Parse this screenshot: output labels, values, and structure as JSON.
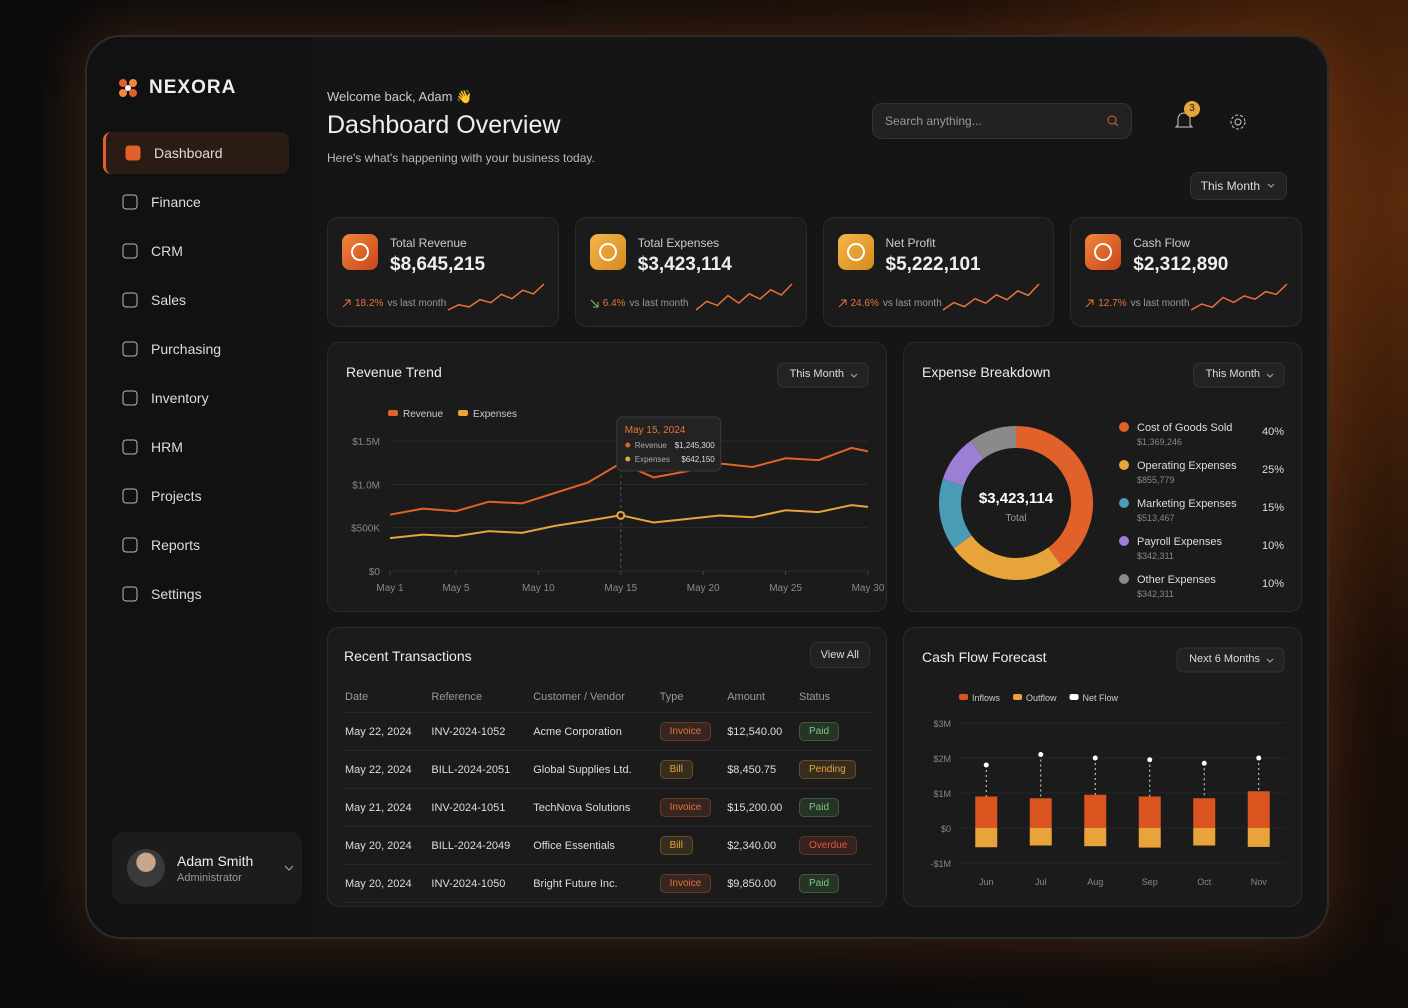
{
  "brand": "NEXORA",
  "nav": [
    "Dashboard",
    "Finance",
    "CRM",
    "Sales",
    "Purchasing",
    "Inventory",
    "HRM",
    "Projects",
    "Reports",
    "Settings"
  ],
  "user": {
    "name": "Adam Smith",
    "role": "Administrator"
  },
  "header": {
    "welcome": "Welcome back, Adam 👋",
    "title": "Dashboard Overview",
    "subtitle": "Here's what's happening with your business today.",
    "search_placeholder": "Search anything...",
    "notifications": 3,
    "period": "This Month"
  },
  "kpis": [
    {
      "label": "Total Revenue",
      "value": "$8,645,215",
      "change": "18.2%",
      "note": "vs last month",
      "direction": "up",
      "trend": [
        3,
        4,
        3.6,
        5,
        4.4,
        6,
        5.2,
        6.8,
        6.1,
        8
      ]
    },
    {
      "label": "Total Expenses",
      "value": "$3,423,114",
      "change": "6.4%",
      "note": "vs last month",
      "direction": "down",
      "trend": [
        3,
        4.5,
        3.8,
        5.5,
        4.2,
        5.8,
        4.9,
        6.5,
        5.6,
        7.5
      ]
    },
    {
      "label": "Net Profit",
      "value": "$5,222,101",
      "change": "24.6%",
      "note": "vs last month",
      "direction": "up",
      "trend": [
        2.5,
        4,
        3.2,
        4.8,
        3.9,
        5.6,
        4.6,
        6.4,
        5.5,
        7.8
      ]
    },
    {
      "label": "Cash Flow",
      "value": "$2,312,890",
      "change": "12.7%",
      "note": "vs last month",
      "direction": "up",
      "trend": [
        2.8,
        3.9,
        3.3,
        5.1,
        4.2,
        5.4,
        4.8,
        6.2,
        5.7,
        7.6
      ]
    }
  ],
  "revenue_trend": {
    "title": "Revenue Trend",
    "period": "This Month",
    "x": [
      1,
      3,
      5,
      7,
      9,
      11,
      13,
      15,
      17,
      19,
      21,
      23,
      25,
      27,
      29,
      30
    ],
    "xlim": [
      1,
      30
    ],
    "xticks": [
      {
        "value": 1,
        "label": "May 1"
      },
      {
        "value": 5,
        "label": "May 5"
      },
      {
        "value": 10,
        "label": "May 10"
      },
      {
        "value": 15,
        "label": "May 15"
      },
      {
        "value": 20,
        "label": "May 20"
      },
      {
        "value": 25,
        "label": "May 25"
      },
      {
        "value": 30,
        "label": "May 30"
      }
    ],
    "ylim": [
      0,
      1500000
    ],
    "yticks": [
      {
        "value": 0,
        "label": "$0"
      },
      {
        "value": 500000,
        "label": "$500K"
      },
      {
        "value": 1000000,
        "label": "$1.0M"
      },
      {
        "value": 1500000,
        "label": "$1.5M"
      }
    ],
    "series": [
      {
        "name": "Revenue",
        "color": "#e0622a",
        "values": [
          650000,
          720000,
          690000,
          800000,
          780000,
          900000,
          1020000,
          1245300,
          1080000,
          1150000,
          1240000,
          1200000,
          1300000,
          1280000,
          1420000,
          1380000
        ]
      },
      {
        "name": "Expenses",
        "color": "#e8a33a",
        "values": [
          380000,
          420000,
          400000,
          460000,
          440000,
          520000,
          580000,
          642150,
          560000,
          600000,
          640000,
          620000,
          700000,
          680000,
          760000,
          740000
        ]
      }
    ],
    "tooltip": {
      "date": "May 15, 2024",
      "items": [
        {
          "name": "Revenue",
          "value": "$1,245,300"
        },
        {
          "name": "Expenses",
          "value": "$642,150"
        }
      ]
    }
  },
  "expense_breakdown": {
    "title": "Expense Breakdown",
    "period": "This Month",
    "total": "$3,423,114",
    "total_label": "Total",
    "categories": [
      "Cost of Goods Sold",
      "Operating Expenses",
      "Marketing Expenses",
      "Payroll Expenses",
      "Other Expenses"
    ],
    "amounts": [
      "$1,369,246",
      "$855,779",
      "$513,467",
      "$342,311",
      "$342,311"
    ],
    "values": [
      40,
      25,
      15,
      10,
      10
    ],
    "value_labels": [
      "40%",
      "25%",
      "15%",
      "10%",
      "10%"
    ],
    "colors": [
      "#e0622a",
      "#e8a33a",
      "#4a9bb5",
      "#9b7fd6",
      "#8a8a8a"
    ]
  },
  "transactions": {
    "title": "Recent Transactions",
    "action": "View All",
    "columns": [
      "Date",
      "Reference",
      "Customer / Vendor",
      "Type",
      "Amount",
      "Status"
    ],
    "rows": [
      [
        "May 22, 2024",
        "INV-2024-1052",
        "Acme Corporation",
        "Invoice",
        "$12,540.00",
        "Paid"
      ],
      [
        "May 22, 2024",
        "BILL-2024-2051",
        "Global Supplies Ltd.",
        "Bill",
        "$8,450.75",
        "Pending"
      ],
      [
        "May 21, 2024",
        "INV-2024-1051",
        "TechNova Solutions",
        "Invoice",
        "$15,200.00",
        "Paid"
      ],
      [
        "May 20, 2024",
        "BILL-2024-2049",
        "Office Essentials",
        "Bill",
        "$2,340.00",
        "Overdue"
      ],
      [
        "May 20, 2024",
        "INV-2024-1050",
        "Bright Future Inc.",
        "Invoice",
        "$9,850.00",
        "Paid"
      ]
    ]
  },
  "cash_flow": {
    "title": "Cash Flow Forecast",
    "period": "Next 6 Months",
    "categories": [
      "Jun",
      "Jul",
      "Aug",
      "Sep",
      "Oct",
      "Nov"
    ],
    "ylim": [
      -1000000,
      3000000
    ],
    "yticks": [
      {
        "value": -1000000,
        "label": "-$1M"
      },
      {
        "value": 0,
        "label": "$0"
      },
      {
        "value": 1000000,
        "label": "$1M"
      },
      {
        "value": 2000000,
        "label": "$2M"
      },
      {
        "value": 3000000,
        "label": "$3M"
      }
    ],
    "series": [
      {
        "name": "Inflows",
        "color": "#d9541f",
        "values": [
          900000,
          850000,
          950000,
          900000,
          850000,
          1050000
        ]
      },
      {
        "name": "Outflow",
        "color": "#e8a33a",
        "values": [
          -550000,
          -500000,
          -520000,
          -560000,
          -500000,
          -540000
        ]
      },
      {
        "name": "Net Flow",
        "color": "#ffffff",
        "values": [
          1800000,
          2100000,
          2000000,
          1950000,
          1850000,
          2000000
        ]
      }
    ]
  }
}
